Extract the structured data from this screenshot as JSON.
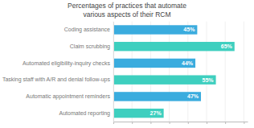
{
  "chart_data": {
    "type": "bar",
    "orientation": "horizontal",
    "title": "Percentages of practices that automate\nvarious aspects of their RCM",
    "categories": [
      "Coding assistance",
      "Claim scrubbing",
      "Automated eligibility-inquiry checks",
      "Tasking staff with A/R and denial follow-ups",
      "Automatic appointment reminders",
      "Automated reporting"
    ],
    "values": [
      45,
      65,
      44,
      55,
      47,
      27
    ],
    "value_labels": [
      "45%",
      "65%",
      "44%",
      "55%",
      "47%",
      "27%"
    ],
    "colors": [
      "#3aacde",
      "#3ecfbf",
      "#3aacde",
      "#3ecfbf",
      "#3aacde",
      "#3ecfbf"
    ],
    "xlim": [
      0,
      72
    ],
    "xticks": [
      0,
      10,
      20,
      30,
      40,
      50,
      60,
      70
    ],
    "grid": true,
    "data_labels": true,
    "tick_labels": "y"
  }
}
